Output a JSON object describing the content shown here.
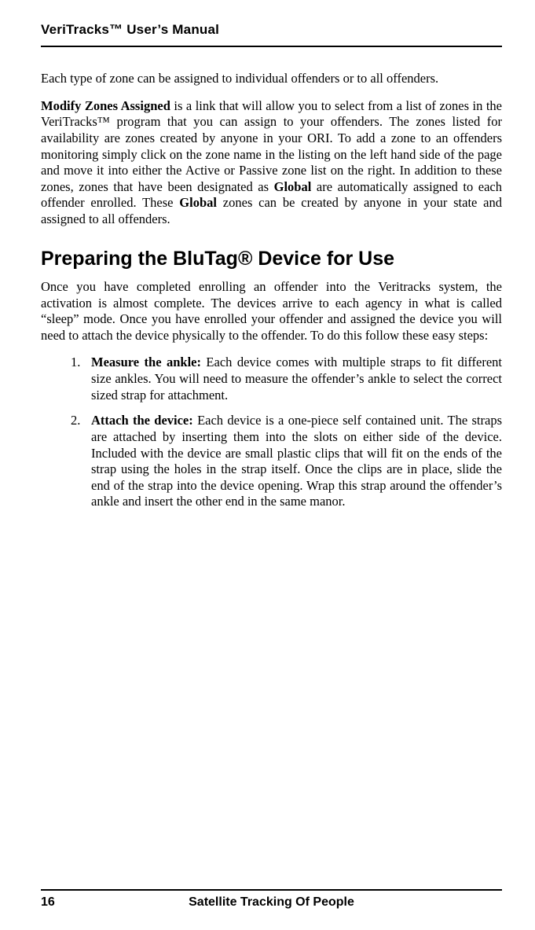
{
  "running_head": "VeriTracks™ User’s Manual",
  "intro_para": "Each type of zone can be assigned to individual offenders or to all offenders.",
  "modify_zones": {
    "lead_bold": "Modify Zones Assigned",
    "text_1": " is a link that will allow you to select from a list of zones in the VeriTracks™ program that you can assign to your offenders.  The zones listed for availability are zones created by anyone in your ORI.    To add a zone to an offenders monitoring simply click on the zone name in the listing on the left hand side of the page and move it into either the Active or Passive zone list on the right.  In addition to these zones, zones that have been designated as ",
    "global_1": "Global",
    "text_2": " are automatically assigned to each offender enrolled.  These ",
    "global_2": "Global",
    "text_3": " zones can be created by anyone in your state and assigned to all offenders."
  },
  "section_heading": "Preparing the BluTag® Device for Use",
  "section_para": "Once you have completed enrolling an offender into the Veritracks system, the activation is almost complete.  The devices arrive to each agency in what is called “sleep” mode.  Once you have enrolled your offender and assigned the device you will need to attach the device physically to the offender.  To do this follow these easy steps:",
  "steps": [
    {
      "num": "1.",
      "lead": "Measure the ankle:",
      "rest": "  Each device comes with multiple straps to fit different size ankles.  You will need to measure the offender’s ankle to select the correct sized strap for attachment."
    },
    {
      "num": "2.",
      "lead": "Attach the device:",
      "rest": "  Each device is a one-piece self contained unit.  The straps are attached by inserting them into the slots on either side of  the device.  Included with the device are small plastic clips that will fit on the ends of the strap using the holes in the strap itself.  Once the clips are in place, slide the end of the strap into the device opening.  Wrap this strap around the offender’s ankle and insert the other end in the same manor."
    }
  ],
  "footer": {
    "page": "16",
    "title": "Satellite Tracking Of People"
  }
}
